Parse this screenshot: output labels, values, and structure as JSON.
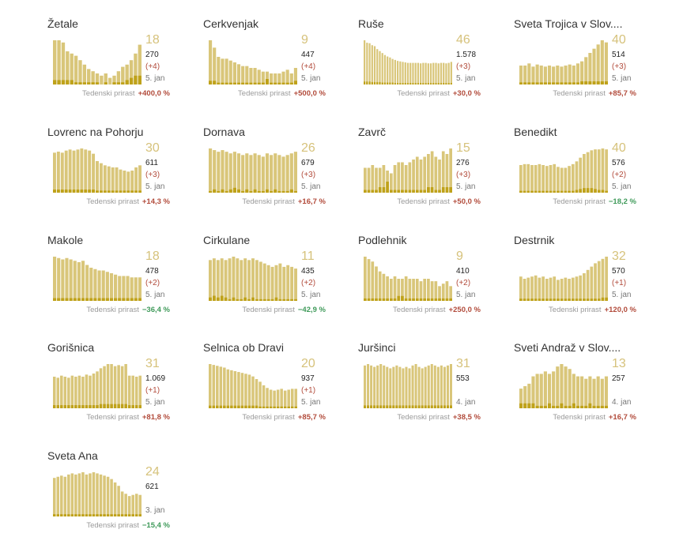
{
  "colors": {
    "bar": "#d9c67a",
    "bar_dark": "#bfa21a",
    "increase": "#b24b3b",
    "decrease": "#3f9a5a"
  },
  "weekly_label": "Tedenski prirast",
  "chart_data": [
    {
      "type": "bar",
      "title": "Žetale",
      "big": "18",
      "total": "270",
      "delta": "(+4)",
      "date": "5. jan",
      "weekly": "+400,0 %",
      "trend": "up",
      "values": [
        20,
        20,
        19,
        15,
        14,
        13,
        11,
        9,
        7,
        6,
        5,
        4,
        5,
        3,
        4,
        6,
        8,
        9,
        11,
        14,
        18
      ],
      "values_dark": [
        2,
        2,
        2,
        2,
        2,
        1,
        1,
        1,
        1,
        1,
        1,
        0,
        1,
        0,
        1,
        1,
        1,
        2,
        3,
        4,
        4
      ]
    },
    {
      "type": "bar",
      "title": "Cerkvenjak",
      "big": "9",
      "total": "447",
      "delta": "(+4)",
      "date": "5. jan",
      "weekly": "+500,0 %",
      "trend": "up",
      "values": [
        24,
        20,
        15,
        14,
        14,
        13,
        12,
        11,
        10,
        10,
        9,
        9,
        8,
        7,
        7,
        6,
        6,
        6,
        7,
        8,
        6,
        9
      ],
      "values_dark": [
        2,
        2,
        1,
        1,
        1,
        1,
        1,
        1,
        1,
        1,
        1,
        1,
        1,
        1,
        3,
        1,
        1,
        1,
        1,
        1,
        1,
        2
      ]
    },
    {
      "type": "bar",
      "title": "Ruše",
      "big": "46",
      "total": "1.578",
      "delta": "(+3)",
      "date": "5. jan",
      "weekly": "+30,0 %",
      "trend": "up",
      "values": [
        90,
        85,
        84,
        80,
        78,
        72,
        68,
        64,
        60,
        57,
        55,
        52,
        50,
        48,
        47,
        46,
        45,
        44,
        44,
        44,
        44,
        44,
        43,
        44,
        44,
        43,
        43,
        44,
        44,
        43,
        44,
        44,
        43,
        44,
        46
      ],
      "values_dark": [
        6,
        6,
        6,
        5,
        5,
        5,
        5,
        4,
        4,
        4,
        4,
        4,
        3,
        3,
        3,
        3,
        3,
        3,
        3,
        3,
        3,
        3,
        3,
        3,
        3,
        3,
        3,
        3,
        3,
        3,
        3,
        3,
        3,
        3,
        3
      ]
    },
    {
      "type": "bar",
      "title": "Sveta Trojica v Slov....",
      "big": "40",
      "total": "514",
      "delta": "(+3)",
      "date": "5. jan",
      "weekly": "+85,7 %",
      "trend": "up",
      "values": [
        18,
        18,
        20,
        17,
        19,
        18,
        17,
        18,
        17,
        18,
        17,
        18,
        19,
        18,
        20,
        22,
        26,
        30,
        34,
        38,
        42,
        40
      ],
      "values_dark": [
        2,
        2,
        2,
        2,
        2,
        2,
        2,
        2,
        2,
        2,
        2,
        2,
        2,
        2,
        2,
        3,
        3,
        3,
        3,
        3,
        3,
        3
      ]
    },
    {
      "type": "bar",
      "title": "Lovrenc na Pohorju",
      "big": "30",
      "total": "611",
      "delta": "(+3)",
      "date": "5. jan",
      "weekly": "+14,3 %",
      "trend": "up",
      "values": [
        38,
        39,
        38,
        40,
        41,
        40,
        41,
        42,
        41,
        40,
        37,
        30,
        28,
        26,
        25,
        24,
        24,
        22,
        21,
        20,
        21,
        24,
        26
      ],
      "values_dark": [
        3,
        3,
        3,
        3,
        3,
        3,
        3,
        3,
        3,
        3,
        3,
        2,
        2,
        2,
        2,
        2,
        2,
        2,
        2,
        2,
        2,
        2,
        2
      ]
    },
    {
      "type": "bar",
      "title": "Dornava",
      "big": "26",
      "total": "679",
      "delta": "(+3)",
      "date": "5. jan",
      "weekly": "+16,7 %",
      "trend": "up",
      "values": [
        27,
        26,
        25,
        26,
        25,
        24,
        25,
        24,
        23,
        24,
        23,
        24,
        23,
        22,
        24,
        23,
        24,
        23,
        22,
        23,
        24,
        25
      ],
      "values_dark": [
        1,
        2,
        1,
        2,
        1,
        2,
        3,
        2,
        1,
        2,
        1,
        2,
        1,
        1,
        2,
        1,
        2,
        1,
        1,
        1,
        2,
        1
      ]
    },
    {
      "type": "bar",
      "title": "Zavrč",
      "big": "15",
      "total": "276",
      "delta": "(+3)",
      "date": "5. jan",
      "weekly": "+50,0 %",
      "trend": "up",
      "values": [
        9,
        9,
        10,
        9,
        9,
        10,
        8,
        7,
        10,
        11,
        11,
        10,
        11,
        12,
        13,
        12,
        13,
        14,
        15,
        13,
        12,
        15,
        14,
        16
      ],
      "values_dark": [
        1,
        1,
        1,
        1,
        2,
        2,
        4,
        1,
        1,
        1,
        1,
        1,
        1,
        1,
        1,
        1,
        1,
        2,
        2,
        1,
        1,
        2,
        2,
        2
      ]
    },
    {
      "type": "bar",
      "title": "Benedikt",
      "big": "40",
      "total": "576",
      "delta": "(+2)",
      "date": "5. jan",
      "weekly": "−18,2 %",
      "trend": "down",
      "values": [
        30,
        31,
        31,
        30,
        30,
        31,
        30,
        29,
        30,
        31,
        28,
        27,
        27,
        29,
        31,
        34,
        38,
        42,
        44,
        46,
        47,
        47,
        48,
        47
      ],
      "values_dark": [
        2,
        2,
        2,
        2,
        2,
        2,
        2,
        2,
        2,
        2,
        2,
        2,
        2,
        2,
        2,
        3,
        4,
        5,
        5,
        5,
        4,
        3,
        3,
        2
      ]
    },
    {
      "type": "bar",
      "title": "Makole",
      "big": "18",
      "total": "478",
      "delta": "(+2)",
      "date": "5. jan",
      "weekly": "−36,4 %",
      "trend": "down",
      "values": [
        32,
        31,
        30,
        31,
        30,
        29,
        28,
        29,
        26,
        24,
        23,
        22,
        22,
        21,
        20,
        19,
        18,
        18,
        18,
        17,
        17,
        17
      ],
      "values_dark": [
        2,
        2,
        2,
        2,
        2,
        2,
        2,
        2,
        2,
        2,
        2,
        2,
        2,
        2,
        2,
        2,
        2,
        2,
        2,
        2,
        2,
        2
      ]
    },
    {
      "type": "bar",
      "title": "Cirkulane",
      "big": "11",
      "total": "435",
      "delta": "(+2)",
      "date": "5. jan",
      "weekly": "−42,9 %",
      "trend": "down",
      "values": [
        24,
        25,
        24,
        25,
        24,
        25,
        26,
        25,
        24,
        25,
        24,
        25,
        24,
        23,
        22,
        21,
        20,
        21,
        22,
        20,
        21,
        20,
        19
      ],
      "values_dark": [
        2,
        3,
        2,
        3,
        2,
        1,
        2,
        1,
        1,
        2,
        1,
        2,
        1,
        1,
        1,
        1,
        1,
        2,
        1,
        1,
        1,
        1,
        1
      ]
    },
    {
      "type": "bar",
      "title": "Podlehnik",
      "big": "9",
      "total": "410",
      "delta": "(+2)",
      "date": "5. jan",
      "weekly": "+250,0 %",
      "trend": "up",
      "values": [
        18,
        17,
        16,
        14,
        12,
        11,
        10,
        9,
        10,
        9,
        9,
        10,
        9,
        9,
        9,
        8,
        9,
        9,
        8,
        8,
        6,
        7,
        8,
        6
      ],
      "values_dark": [
        1,
        1,
        1,
        1,
        1,
        1,
        1,
        1,
        1,
        2,
        2,
        1,
        1,
        1,
        1,
        1,
        1,
        1,
        1,
        1,
        1,
        1,
        1,
        1
      ]
    },
    {
      "type": "bar",
      "title": "Destrnik",
      "big": "32",
      "total": "570",
      "delta": "(+1)",
      "date": "5. jan",
      "weekly": "+120,0 %",
      "trend": "up",
      "values": [
        22,
        20,
        21,
        22,
        23,
        21,
        22,
        20,
        21,
        22,
        19,
        20,
        21,
        20,
        21,
        22,
        23,
        25,
        28,
        31,
        34,
        36,
        38,
        40
      ],
      "values_dark": [
        2,
        2,
        2,
        2,
        2,
        2,
        2,
        2,
        2,
        2,
        2,
        2,
        2,
        2,
        2,
        2,
        2,
        2,
        2,
        2,
        2,
        2,
        3,
        3
      ]
    },
    {
      "type": "bar",
      "title": "Gorišnica",
      "big": "31",
      "total": "1.069",
      "delta": "(+1)",
      "date": "5. jan",
      "weekly": "+81,8 %",
      "trend": "up",
      "values": [
        30,
        29,
        31,
        30,
        29,
        31,
        30,
        31,
        30,
        32,
        31,
        33,
        35,
        38,
        40,
        42,
        42,
        40,
        41,
        40,
        42,
        31,
        31,
        30,
        31
      ],
      "values_dark": [
        3,
        3,
        3,
        3,
        3,
        3,
        3,
        3,
        3,
        3,
        3,
        3,
        3,
        4,
        4,
        4,
        4,
        4,
        4,
        4,
        4,
        3,
        3,
        3,
        3
      ]
    },
    {
      "type": "bar",
      "title": "Selnica ob Dravi",
      "big": "20",
      "total": "937",
      "delta": "(+1)",
      "date": "5. jan",
      "weekly": "+85,7 %",
      "trend": "up",
      "values": [
        50,
        49,
        48,
        47,
        46,
        44,
        43,
        42,
        41,
        40,
        39,
        38,
        36,
        33,
        30,
        26,
        23,
        21,
        20,
        21,
        22,
        20,
        21,
        22,
        22
      ],
      "values_dark": [
        3,
        3,
        3,
        3,
        3,
        3,
        3,
        3,
        3,
        3,
        3,
        3,
        3,
        3,
        2,
        2,
        2,
        2,
        2,
        2,
        2,
        2,
        2,
        2,
        2
      ]
    },
    {
      "type": "bar",
      "title": "Juršinci",
      "big": "31",
      "total": "553",
      "delta": "",
      "date": "4. jan",
      "weekly": "+38,5 %",
      "trend": "up",
      "values": [
        30,
        31,
        30,
        29,
        30,
        31,
        30,
        29,
        28,
        29,
        30,
        29,
        28,
        29,
        28,
        30,
        31,
        29,
        28,
        29,
        30,
        31,
        30,
        29,
        30,
        29,
        30,
        31
      ],
      "values_dark": [
        2,
        2,
        2,
        2,
        2,
        2,
        2,
        2,
        2,
        2,
        2,
        2,
        2,
        2,
        2,
        2,
        2,
        2,
        2,
        2,
        2,
        2,
        2,
        2,
        2,
        2,
        2,
        2
      ]
    },
    {
      "type": "bar",
      "title": "Sveti Andraž v Slov....",
      "big": "13",
      "total": "257",
      "delta": "",
      "date": "4. jan",
      "weekly": "+16,7 %",
      "trend": "up",
      "values": [
        8,
        9,
        10,
        13,
        14,
        14,
        15,
        14,
        15,
        17,
        18,
        17,
        16,
        14,
        13,
        13,
        12,
        13,
        12,
        13,
        12,
        13
      ],
      "values_dark": [
        2,
        2,
        2,
        2,
        1,
        1,
        1,
        2,
        1,
        1,
        2,
        1,
        1,
        2,
        1,
        1,
        1,
        2,
        1,
        1,
        1,
        1
      ]
    },
    {
      "type": "bar",
      "title": "Sveta Ana",
      "big": "24",
      "total": "621",
      "delta": "",
      "date": "3. jan",
      "weekly": "−15,4 %",
      "trend": "down",
      "values": [
        34,
        35,
        36,
        35,
        37,
        38,
        37,
        38,
        39,
        37,
        38,
        39,
        38,
        37,
        36,
        35,
        33,
        30,
        27,
        22,
        20,
        18,
        19,
        20,
        19
      ],
      "values_dark": [
        2,
        2,
        2,
        2,
        2,
        2,
        2,
        2,
        2,
        2,
        2,
        2,
        2,
        2,
        2,
        2,
        2,
        2,
        2,
        2,
        2,
        2,
        2,
        2,
        2
      ]
    }
  ]
}
